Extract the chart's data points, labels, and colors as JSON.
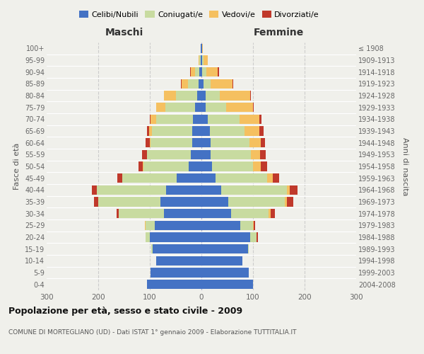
{
  "age_groups": [
    "0-4",
    "5-9",
    "10-14",
    "15-19",
    "20-24",
    "25-29",
    "30-34",
    "35-39",
    "40-44",
    "45-49",
    "50-54",
    "55-59",
    "60-64",
    "65-69",
    "70-74",
    "75-79",
    "80-84",
    "85-89",
    "90-94",
    "95-99",
    "100+"
  ],
  "birth_years": [
    "2004-2008",
    "1999-2003",
    "1994-1998",
    "1989-1993",
    "1984-1988",
    "1979-1983",
    "1974-1978",
    "1969-1973",
    "1964-1968",
    "1959-1963",
    "1954-1958",
    "1949-1953",
    "1944-1948",
    "1939-1943",
    "1934-1938",
    "1929-1933",
    "1924-1928",
    "1919-1923",
    "1914-1918",
    "1909-1913",
    "≤ 1908"
  ],
  "males": {
    "celibi": [
      105,
      98,
      88,
      95,
      100,
      90,
      72,
      80,
      68,
      48,
      24,
      20,
      18,
      18,
      16,
      12,
      8,
      6,
      4,
      2,
      1
    ],
    "coniugati": [
      0,
      0,
      0,
      2,
      8,
      18,
      88,
      120,
      135,
      105,
      88,
      85,
      80,
      78,
      72,
      58,
      42,
      20,
      8,
      2,
      0
    ],
    "vedovi": [
      0,
      0,
      0,
      0,
      0,
      2,
      0,
      0,
      0,
      0,
      2,
      0,
      2,
      5,
      10,
      18,
      22,
      12,
      8,
      2,
      0
    ],
    "divorziati": [
      0,
      0,
      0,
      0,
      0,
      0,
      4,
      8,
      10,
      10,
      8,
      10,
      8,
      5,
      2,
      0,
      0,
      2,
      2,
      0,
      0
    ]
  },
  "females": {
    "nubili": [
      100,
      92,
      80,
      90,
      95,
      75,
      58,
      52,
      38,
      28,
      20,
      18,
      18,
      16,
      12,
      8,
      8,
      4,
      2,
      2,
      1
    ],
    "coniugate": [
      0,
      0,
      0,
      2,
      12,
      25,
      72,
      110,
      128,
      100,
      80,
      78,
      75,
      68,
      62,
      40,
      28,
      14,
      8,
      2,
      0
    ],
    "vedove": [
      0,
      0,
      0,
      0,
      0,
      2,
      4,
      4,
      5,
      10,
      15,
      18,
      22,
      28,
      38,
      52,
      58,
      42,
      22,
      8,
      2
    ],
    "divorziate": [
      0,
      0,
      0,
      0,
      2,
      2,
      8,
      12,
      15,
      12,
      12,
      10,
      8,
      8,
      5,
      2,
      2,
      2,
      2,
      0,
      0
    ]
  },
  "colors": {
    "celibi_nubili": "#4472c4",
    "coniugati": "#c8dba0",
    "vedovi": "#f5c060",
    "divorziati": "#c0392b"
  },
  "xlim": 300,
  "title": "Popolazione per età, sesso e stato civile - 2009",
  "subtitle": "COMUNE DI MORTEGLIANO (UD) - Dati ISTAT 1° gennaio 2009 - Elaborazione TUTTITALIA.IT",
  "xlabel_left": "Maschi",
  "xlabel_right": "Femmine",
  "ylabel_left": "Fasce di età",
  "ylabel_right": "Anni di nascita",
  "bg_color": "#f0f0eb"
}
